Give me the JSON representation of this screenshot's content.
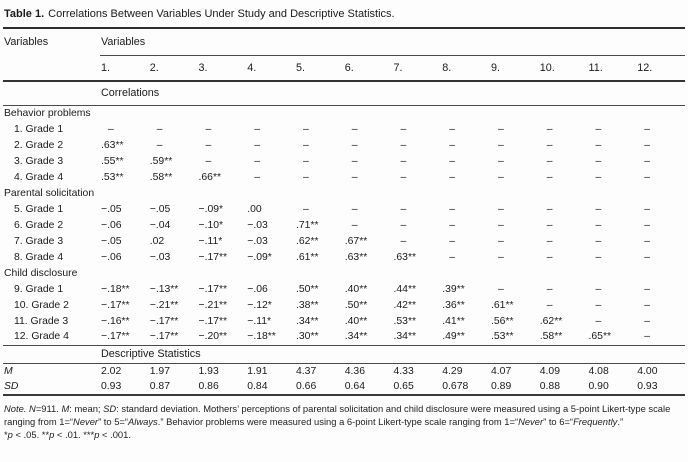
{
  "title": {
    "label": "Table 1.",
    "caption": "Correlations Between Variables Under Study and Descriptive Statistics."
  },
  "colors": {
    "background": "#fdfdfd",
    "text": "#1b1b1b",
    "rule": "#2e2e2e"
  },
  "table": {
    "corner_header": "Variables",
    "group_header": "Variables",
    "columns": [
      "1.",
      "2.",
      "3.",
      "4.",
      "5.",
      "6.",
      "7.",
      "8.",
      "9.",
      "10.",
      "11.",
      "12."
    ],
    "correlations_label": "Correlations",
    "missing_mark": "–",
    "sections": [
      {
        "label": "Behavior problems",
        "rows": [
          {
            "label": "1. Grade 1",
            "values": [
              "–",
              "–",
              "–",
              "–",
              "–",
              "–",
              "–",
              "–",
              "–",
              "–",
              "–",
              "–"
            ]
          },
          {
            "label": "2. Grade 2",
            "values": [
              ".63**",
              "–",
              "–",
              "–",
              "–",
              "–",
              "–",
              "–",
              "–",
              "–",
              "–",
              "–"
            ]
          },
          {
            "label": "3. Grade 3",
            "values": [
              ".55**",
              ".59**",
              "–",
              "–",
              "–",
              "–",
              "–",
              "–",
              "–",
              "–",
              "–",
              "–"
            ]
          },
          {
            "label": "4. Grade 4",
            "values": [
              ".53**",
              ".58**",
              ".66**",
              "–",
              "–",
              "–",
              "–",
              "–",
              "–",
              "–",
              "–",
              "–"
            ]
          }
        ]
      },
      {
        "label": "Parental solicitation",
        "rows": [
          {
            "label": "5. Grade 1",
            "values": [
              "−.05",
              "−.05",
              "−.09*",
              ".00",
              "–",
              "–",
              "–",
              "–",
              "–",
              "–",
              "–",
              "–"
            ]
          },
          {
            "label": "6. Grade 2",
            "values": [
              "−.06",
              "−.04",
              "−.10*",
              "−.03",
              ".71**",
              "–",
              "–",
              "–",
              "–",
              "–",
              "–",
              "–"
            ]
          },
          {
            "label": "7. Grade 3",
            "values": [
              "−.05",
              ".02",
              "−.11*",
              "−.03",
              ".62**",
              ".67**",
              "–",
              "–",
              "–",
              "–",
              "–",
              "–"
            ]
          },
          {
            "label": "8. Grade 4",
            "values": [
              "−.06",
              "−.03",
              "−.17**",
              "−.09*",
              ".61**",
              ".63**",
              ".63**",
              "–",
              "–",
              "–",
              "–",
              "–"
            ]
          }
        ]
      },
      {
        "label": "Child disclosure",
        "rows": [
          {
            "label": "9. Grade 1",
            "values": [
              "−.18**",
              "−.13**",
              "−.17**",
              "−.06",
              ".50**",
              ".40**",
              ".44**",
              ".39**",
              "–",
              "–",
              "–",
              "–"
            ]
          },
          {
            "label": "10. Grade 2",
            "values": [
              "−.17**",
              "−.21**",
              "−.21**",
              "−.12*",
              ".38**",
              ".50**",
              ".42**",
              ".36**",
              ".61**",
              "–",
              "–",
              "–"
            ]
          },
          {
            "label": "11. Grade 3",
            "values": [
              "−.16**",
              "−.17**",
              "−.17**",
              "−.11*",
              ".34**",
              ".40**",
              ".53**",
              ".41**",
              ".56**",
              ".62**",
              "–",
              "–"
            ]
          },
          {
            "label": "12. Grade 4",
            "values": [
              "−.17**",
              "−.17**",
              "−.20**",
              "−.18**",
              ".30**",
              ".34**",
              ".34**",
              ".49**",
              ".53**",
              ".58**",
              ".65**",
              "–"
            ]
          }
        ]
      }
    ],
    "descriptives_label": "Descriptive Statistics",
    "stat_rows": [
      {
        "label": "M",
        "values": [
          "2.02",
          "1.97",
          "1.93",
          "1.91",
          "4.37",
          "4.36",
          "4.33",
          "4.29",
          "4.07",
          "4.09",
          "4.08",
          "4.00"
        ]
      },
      {
        "label": "SD",
        "values": [
          "0.93",
          "0.87",
          "0.86",
          "0.84",
          "0.66",
          "0.64",
          "0.65",
          "0.678",
          "0.89",
          "0.88",
          "0.90",
          "0.93"
        ]
      }
    ]
  },
  "note": {
    "line1": [
      {
        "t": "Note.",
        "i": true
      },
      {
        "t": " ",
        "i": false
      },
      {
        "t": "N",
        "i": true
      },
      {
        "t": "=911. ",
        "i": false
      },
      {
        "t": "M",
        "i": true
      },
      {
        "t": ": mean; ",
        "i": false
      },
      {
        "t": "SD",
        "i": true
      },
      {
        "t": ": standard deviation. Mothers’ perceptions of parental solicitation and child disclosure were measured using a 5-point Likert-type scale ranging from 1=“",
        "i": false
      },
      {
        "t": "Never",
        "i": true
      },
      {
        "t": "” to 5=“",
        "i": false
      },
      {
        "t": "Always",
        "i": true
      },
      {
        "t": ".” Behavior problems were measured using a 6-point Likert-type scale ranging from 1=“",
        "i": false
      },
      {
        "t": "Never",
        "i": true
      },
      {
        "t": "” to 6=“",
        "i": false
      },
      {
        "t": "Frequently",
        "i": true
      },
      {
        "t": ".”",
        "i": false
      }
    ],
    "line2": [
      {
        "t": "*",
        "i": false
      },
      {
        "t": "p",
        "i": true
      },
      {
        "t": " < .05. **",
        "i": false
      },
      {
        "t": "p",
        "i": true
      },
      {
        "t": " < .01. ***",
        "i": false
      },
      {
        "t": "p",
        "i": true
      },
      {
        "t": " < .001.",
        "i": false
      }
    ]
  }
}
